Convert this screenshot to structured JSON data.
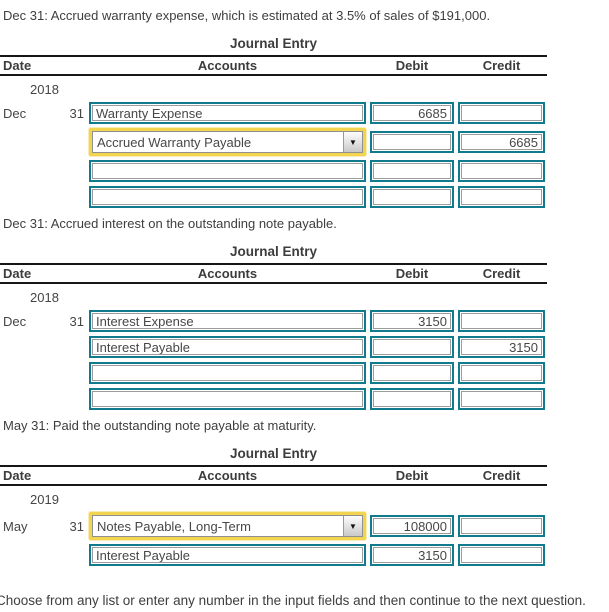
{
  "page": {
    "footer": "Choose from any list or enter any number in the input fields and then continue to the next question."
  },
  "icons": {
    "dropdown_arrow": "▼"
  },
  "colors": {
    "input_border_teal": "#0F7B8C",
    "highlight_yellow": "#F3D44F",
    "table_rule_black": "#161616",
    "text": "#3E3E3E"
  },
  "sections": [
    {
      "title": "Dec 31: Accrued warranty expense, which is estimated at 3.5% of sales of $191,000.",
      "journal_title": "Journal Entry",
      "headers": {
        "date": "Date",
        "accounts": "Accounts",
        "debit": "Debit",
        "credit": "Credit"
      },
      "year": "2018",
      "rows": [
        {
          "month": "Dec",
          "day": "31",
          "account": "Warranty Expense",
          "debit": "6685",
          "credit": ""
        },
        {
          "month": "",
          "day": "",
          "account": "Accrued Warranty Payable",
          "debit": "",
          "credit": "6685"
        },
        {
          "month": "",
          "day": "",
          "account": "",
          "debit": "",
          "credit": ""
        },
        {
          "month": "",
          "day": "",
          "account": "",
          "debit": "",
          "credit": ""
        }
      ]
    },
    {
      "title": "Dec 31: Accrued interest on the outstanding note payable.",
      "journal_title": "Journal Entry",
      "headers": {
        "date": "Date",
        "accounts": "Accounts",
        "debit": "Debit",
        "credit": "Credit"
      },
      "year": "2018",
      "rows": [
        {
          "month": "Dec",
          "day": "31",
          "account": "Interest Expense",
          "debit": "3150",
          "credit": ""
        },
        {
          "month": "",
          "day": "",
          "account": "Interest Payable",
          "debit": "",
          "credit": "3150"
        },
        {
          "month": "",
          "day": "",
          "account": "",
          "debit": "",
          "credit": ""
        },
        {
          "month": "",
          "day": "",
          "account": "",
          "debit": "",
          "credit": ""
        }
      ]
    },
    {
      "title": "May 31: Paid the outstanding note payable at maturity.",
      "journal_title": "Journal Entry",
      "headers": {
        "date": "Date",
        "accounts": "Accounts",
        "debit": "Debit",
        "credit": "Credit"
      },
      "year": "2019",
      "rows": [
        {
          "month": "May",
          "day": "31",
          "account": "Notes Payable, Long-Term",
          "debit": "108000",
          "credit": ""
        },
        {
          "month": "",
          "day": "",
          "account": "Interest Payable",
          "debit": "3150",
          "credit": ""
        }
      ]
    }
  ]
}
